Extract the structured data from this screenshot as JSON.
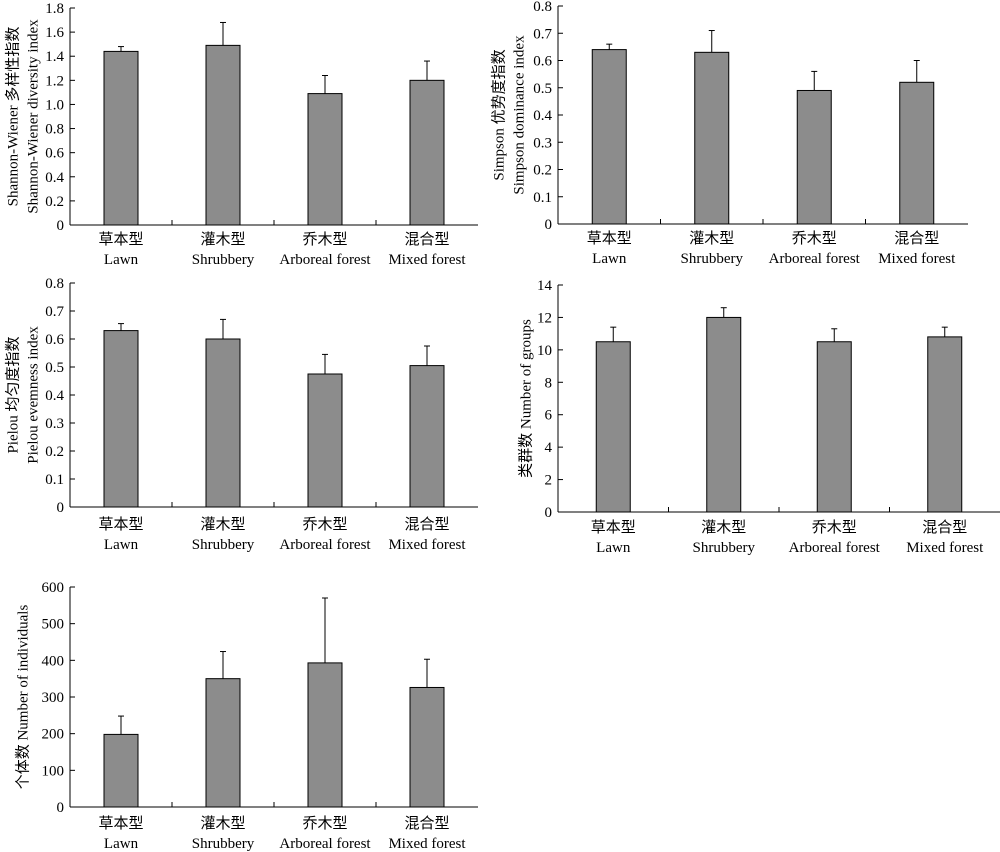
{
  "colors": {
    "bar": "#8c8c8c",
    "axis": "#000000",
    "background": "#ffffff"
  },
  "chart_data": [
    {
      "type": "bar",
      "categories": [
        "草本型 Lawn",
        "灌木型 Shrubbery",
        "乔木型 Arboreal forest",
        "混合型 Mixed forest"
      ],
      "category_lines": [
        [
          "草本型",
          "Lawn"
        ],
        [
          "灌木型",
          "Shrubbery"
        ],
        [
          "乔木型",
          "Arboreal forest"
        ],
        [
          "混合型",
          "Mixed forest"
        ]
      ],
      "values": [
        1.44,
        1.49,
        1.09,
        1.2
      ],
      "errors": [
        0.04,
        0.19,
        0.15,
        0.16
      ],
      "ylabel": [
        "Shannon-Wiener 多样性指数",
        "Shannon-Wiener diversity index"
      ],
      "ylim": [
        0,
        1.8
      ],
      "yticks": [
        "0",
        "0.2",
        "0.4",
        "0.6",
        "0.8",
        "1.0",
        "1.2",
        "1.4",
        "1.6",
        "1.8"
      ],
      "grid": false
    },
    {
      "type": "bar",
      "categories": [
        "草本型 Lawn",
        "灌木型 Shrubbery",
        "乔木型 Arboreal forest",
        "混合型 Mixed forest"
      ],
      "category_lines": [
        [
          "草本型",
          "Lawn"
        ],
        [
          "灌木型",
          "Shrubbery"
        ],
        [
          "乔木型",
          "Arboreal forest"
        ],
        [
          "混合型",
          "Mixed forest"
        ]
      ],
      "values": [
        0.64,
        0.63,
        0.49,
        0.52
      ],
      "errors": [
        0.02,
        0.08,
        0.07,
        0.08
      ],
      "ylabel": [
        "Simpson 优势度指数",
        "Simpson dominance index"
      ],
      "ylim": [
        0,
        0.8
      ],
      "yticks": [
        "0",
        "0.1",
        "0.2",
        "0.3",
        "0.4",
        "0.5",
        "0.6",
        "0.7",
        "0.8"
      ],
      "grid": false
    },
    {
      "type": "bar",
      "categories": [
        "草本型 Lawn",
        "灌木型 Shrubbery",
        "乔木型 Arboreal forest",
        "混合型 Mixed forest"
      ],
      "category_lines": [
        [
          "草本型",
          "Lawn"
        ],
        [
          "灌木型",
          "Shrubbery"
        ],
        [
          "乔木型",
          "Arboreal forest"
        ],
        [
          "混合型",
          "Mixed forest"
        ]
      ],
      "values": [
        0.63,
        0.6,
        0.475,
        0.505
      ],
      "errors": [
        0.025,
        0.07,
        0.07,
        0.07
      ],
      "ylabel": [
        "Pielou 均匀度指数",
        "Pielou evemness index"
      ],
      "ylim": [
        0,
        0.8
      ],
      "yticks": [
        "0",
        "0.1",
        "0.2",
        "0.3",
        "0.4",
        "0.5",
        "0.6",
        "0.7",
        "0.8"
      ],
      "grid": false
    },
    {
      "type": "bar",
      "categories": [
        "草本型 Lawn",
        "灌木型 Shrubbery",
        "乔木型 Arboreal forest",
        "混合型 Mixed forest"
      ],
      "category_lines": [
        [
          "草本型",
          "Lawn"
        ],
        [
          "灌木型",
          "Shrubbery"
        ],
        [
          "乔木型",
          "Arboreal forest"
        ],
        [
          "混合型",
          "Mixed forest"
        ]
      ],
      "values": [
        10.5,
        12.0,
        10.5,
        10.8
      ],
      "errors": [
        0.9,
        0.6,
        0.8,
        0.6
      ],
      "ylabel": [
        "类群数 Number of groups"
      ],
      "ylim": [
        0,
        14
      ],
      "yticks": [
        "0",
        "2",
        "4",
        "6",
        "8",
        "10",
        "12",
        "14"
      ],
      "grid": false
    },
    {
      "type": "bar",
      "categories": [
        "草本型 Lawn",
        "灌木型 Shrubbery",
        "乔木型 Arboreal forest",
        "混合型 Mixed forest"
      ],
      "category_lines": [
        [
          "草本型",
          "Lawn"
        ],
        [
          "灌木型",
          "Shrubbery"
        ],
        [
          "乔木型",
          "Arboreal forest"
        ],
        [
          "混合型",
          "Mixed forest"
        ]
      ],
      "values": [
        198,
        350,
        393,
        326
      ],
      "errors": [
        50,
        74,
        177,
        77
      ],
      "ylabel": [
        "个体数 Number of individuals"
      ],
      "ylim": [
        0,
        600
      ],
      "yticks": [
        "0",
        "100",
        "200",
        "300",
        "400",
        "500",
        "600"
      ],
      "grid": false
    }
  ]
}
